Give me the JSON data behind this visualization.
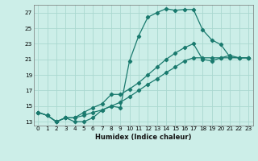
{
  "xlabel": "Humidex (Indice chaleur)",
  "bg_color": "#cceee8",
  "grid_color": "#aad8d0",
  "line_color": "#1a7a6e",
  "xlim": [
    -0.5,
    23.5
  ],
  "ylim": [
    12.5,
    28.0
  ],
  "yticks": [
    13,
    15,
    17,
    19,
    21,
    23,
    25,
    27
  ],
  "xticks": [
    0,
    1,
    2,
    3,
    4,
    5,
    6,
    7,
    8,
    9,
    10,
    11,
    12,
    13,
    14,
    15,
    16,
    17,
    18,
    19,
    20,
    21,
    22,
    23
  ],
  "line1_x": [
    0,
    1,
    2,
    3,
    4,
    5,
    6,
    7,
    8,
    9,
    10,
    11,
    12,
    13,
    14,
    15,
    16,
    17,
    18,
    19,
    20,
    21,
    22,
    23
  ],
  "line1_y": [
    14.2,
    13.8,
    13.0,
    13.5,
    13.0,
    13.0,
    13.5,
    14.5,
    15.0,
    14.8,
    20.8,
    24.0,
    26.4,
    27.0,
    27.5,
    27.3,
    27.4,
    27.4,
    24.8,
    23.5,
    22.9,
    21.3,
    21.2,
    21.2
  ],
  "line2_x": [
    0,
    1,
    2,
    3,
    4,
    5,
    6,
    7,
    8,
    9,
    10,
    11,
    12,
    13,
    14,
    15,
    16,
    17,
    18,
    19,
    20,
    21,
    22,
    23
  ],
  "line2_y": [
    14.2,
    13.8,
    13.0,
    13.5,
    13.5,
    14.2,
    14.8,
    15.3,
    16.5,
    16.5,
    17.2,
    18.0,
    19.0,
    20.0,
    21.0,
    21.8,
    22.5,
    23.0,
    21.0,
    20.8,
    21.2,
    21.5,
    21.2,
    21.2
  ],
  "line3_x": [
    0,
    1,
    2,
    3,
    4,
    5,
    6,
    7,
    8,
    9,
    10,
    11,
    12,
    13,
    14,
    15,
    16,
    17,
    18,
    19,
    20,
    21,
    22,
    23
  ],
  "line3_y": [
    14.2,
    13.8,
    13.0,
    13.5,
    13.5,
    13.8,
    14.2,
    14.5,
    15.0,
    15.5,
    16.2,
    17.0,
    17.8,
    18.5,
    19.3,
    20.0,
    20.8,
    21.2,
    21.2,
    21.2,
    21.2,
    21.2,
    21.2,
    21.2
  ],
  "xlabel_fontsize": 6.0,
  "tick_fontsize": 5.2
}
